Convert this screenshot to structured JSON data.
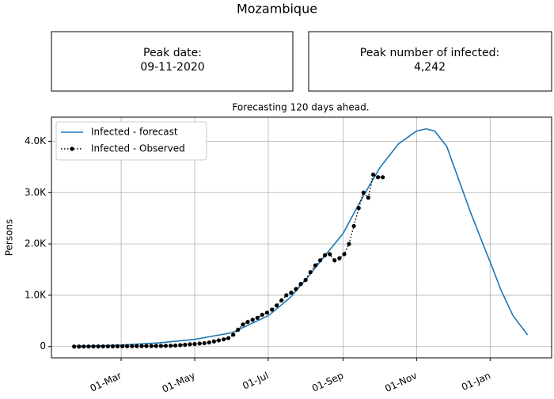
{
  "header": {
    "title": "Mozambique",
    "boxes": [
      {
        "label": "Peak date:",
        "value": "09-11-2020"
      },
      {
        "label": "Peak number of infected:",
        "value": "4,242"
      }
    ]
  },
  "chart_data": {
    "type": "line",
    "title": "Forecasting 120 days ahead.",
    "y_label": "Persons",
    "xlim": [
      2.2,
      417
    ],
    "ylim": [
      -220,
      4470
    ],
    "xticks": [
      {
        "value": 60,
        "label": "01-Mar"
      },
      {
        "value": 121,
        "label": "01-May"
      },
      {
        "value": 182,
        "label": "01-Jul"
      },
      {
        "value": 244,
        "label": "01-Sep"
      },
      {
        "value": 305,
        "label": "01-Nov"
      },
      {
        "value": 366,
        "label": "01-Jan"
      }
    ],
    "yticks": [
      0,
      {
        "value": 1000,
        "label": "1.0K"
      },
      {
        "value": 2000,
        "label": "2.0K"
      },
      {
        "value": 3000,
        "label": "3.0K"
      },
      {
        "value": 4000,
        "label": "4.0K"
      }
    ],
    "grid": true,
    "legend": "upper left",
    "series": [
      {
        "name": "Infected - forecast",
        "color": "#1f77b4",
        "style": "solid",
        "x": [
          21,
          40,
          60,
          91,
          121,
          152,
          182,
          200,
          213,
          230,
          244,
          260,
          275,
          290,
          305,
          313,
          320,
          330,
          340,
          350,
          360,
          366,
          375,
          385,
          397
        ],
        "values": [
          5,
          15,
          30,
          70,
          140,
          270,
          600,
          950,
          1300,
          1800,
          2200,
          2900,
          3500,
          3950,
          4200,
          4242,
          4200,
          3900,
          3250,
          2600,
          2000,
          1650,
          1100,
          600,
          230
        ]
      },
      {
        "name": "Infected - Observed",
        "color": "#000000",
        "style": "dotted",
        "x": [
          21,
          25,
          29,
          33,
          37,
          41,
          45,
          49,
          53,
          57,
          61,
          65,
          69,
          73,
          77,
          81,
          85,
          89,
          93,
          97,
          101,
          105,
          109,
          113,
          117,
          121,
          125,
          129,
          133,
          137,
          141,
          145,
          149,
          153,
          157,
          161,
          165,
          169,
          173,
          177,
          181,
          185,
          189,
          193,
          197,
          201,
          205,
          209,
          213,
          217,
          221,
          225,
          229,
          233,
          237,
          241,
          245,
          249,
          253,
          257,
          261,
          265,
          269,
          273,
          277
        ],
        "values": [
          0,
          0,
          1,
          1,
          2,
          2,
          3,
          3,
          4,
          4,
          5,
          6,
          7,
          8,
          9,
          10,
          10,
          11,
          12,
          14,
          16,
          20,
          28,
          35,
          45,
          50,
          60,
          65,
          80,
          100,
          120,
          140,
          165,
          230,
          330,
          430,
          480,
          520,
          560,
          620,
          660,
          720,
          800,
          900,
          1000,
          1050,
          1120,
          1220,
          1300,
          1450,
          1580,
          1680,
          1780,
          1800,
          1680,
          1720,
          1800,
          2000,
          2350,
          2700,
          3000,
          2900,
          3350,
          3300,
          3300
        ]
      }
    ]
  }
}
